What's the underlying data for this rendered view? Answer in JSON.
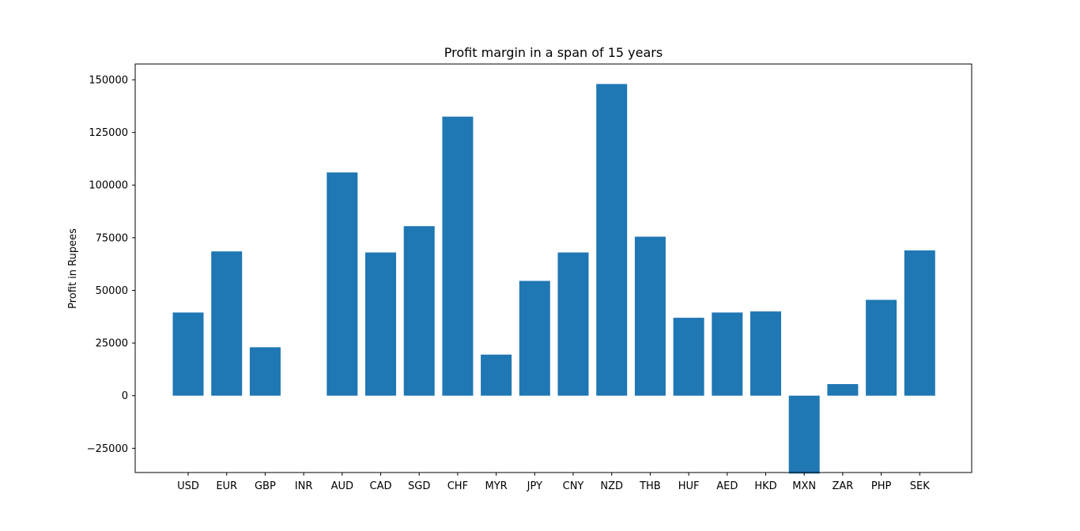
{
  "chart_data": {
    "type": "bar",
    "title": "Profit margin in a span of 15 years",
    "xlabel": "",
    "ylabel": "Profit in Rupees",
    "categories": [
      "USD",
      "EUR",
      "GBP",
      "INR",
      "AUD",
      "CAD",
      "SGD",
      "CHF",
      "MYR",
      "JPY",
      "CNY",
      "NZD",
      "THB",
      "HUF",
      "AED",
      "HKD",
      "MXN",
      "ZAR",
      "PHP",
      "SEK"
    ],
    "values": [
      39500,
      68500,
      23000,
      0,
      106000,
      68000,
      80500,
      132500,
      19500,
      54500,
      68000,
      148000,
      75500,
      37000,
      39500,
      40000,
      -37000,
      5500,
      45500,
      69000
    ],
    "ylim": [
      -36500,
      157500
    ],
    "yticks": [
      -25000,
      0,
      25000,
      50000,
      75000,
      100000,
      125000,
      150000
    ],
    "bar_color": "#1f77b4",
    "grid": false,
    "legend": "none"
  }
}
